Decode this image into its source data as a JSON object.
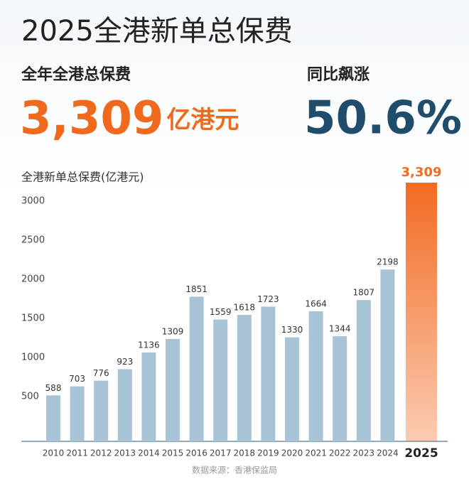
{
  "chart_data": {
    "type": "bar",
    "title": "2025全港新单总保费",
    "headline": {
      "total_label": "全年全港总保费",
      "total": "3,309",
      "unit": "亿港元",
      "growth_label": "同比飙涨",
      "growth": "50.6%"
    },
    "y_label": "全港新单总保费(亿港元)",
    "source": "数据来源：香港保监局",
    "categories": [
      "2010",
      "2011",
      "2012",
      "2013",
      "2014",
      "2015",
      "2016",
      "2017",
      "2018",
      "2019",
      "2020",
      "2021",
      "2022",
      "2023",
      "2024",
      "2025"
    ],
    "values": [
      588,
      703,
      776,
      923,
      1136,
      1309,
      1851,
      1559,
      1618,
      1723,
      1330,
      1664,
      1344,
      1807,
      2198,
      3309
    ],
    "value_labels": [
      "588",
      "703",
      "776",
      "923",
      "1136",
      "1309",
      "1851",
      "1559",
      "1618",
      "1723",
      "1330",
      "1664",
      "1344",
      "1807",
      "2198",
      "3,309"
    ],
    "color": "#a8c2d6",
    "highlight": "2025",
    "highlight_color": "#f26b22",
    "ylim": [
      0,
      3300
    ],
    "yticks": [
      500,
      1000,
      1500,
      2000,
      2500,
      3000
    ],
    "grid": false
  }
}
